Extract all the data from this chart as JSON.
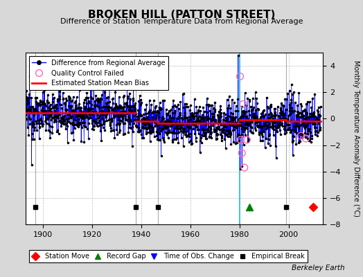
{
  "title": "BROKEN HILL (PATTON STREET)",
  "subtitle": "Difference of Station Temperature Data from Regional Average",
  "ylabel": "Monthly Temperature Anomaly Difference (°C)",
  "xlabel_years": [
    1900,
    1920,
    1940,
    1960,
    1980,
    2000
  ],
  "xlim": [
    1893,
    2014
  ],
  "ylim": [
    -8,
    5
  ],
  "yticks": [
    -8,
    -6,
    -4,
    -2,
    0,
    2,
    4
  ],
  "fig_bg_color": "#d8d8d8",
  "plot_bg_color": "#ffffff",
  "line_color": "#0000ff",
  "dot_color": "#000000",
  "bias_color": "#ff0000",
  "qc_color": "#ff69b4",
  "seed": 12345,
  "bias_segments": [
    {
      "xstart": 1893,
      "xend": 1897,
      "bias": 0.45
    },
    {
      "xstart": 1897,
      "xend": 1938,
      "bias": 0.45
    },
    {
      "xstart": 1938,
      "xend": 1947,
      "bias": -0.2
    },
    {
      "xstart": 1947,
      "xend": 1980,
      "bias": -0.35
    },
    {
      "xstart": 1980,
      "xend": 1984,
      "bias": -0.1
    },
    {
      "xstart": 1984,
      "xend": 1999,
      "bias": -0.1
    },
    {
      "xstart": 1999,
      "xend": 2013,
      "bias": -0.2
    }
  ],
  "obs_change_year": 1980,
  "obs_change_color": "#00bfff",
  "empirical_break_years": [
    1897,
    1938,
    1947,
    1999
  ],
  "empirical_break_color": "#aaaaaa",
  "station_moves": [
    2010
  ],
  "record_gaps": [
    1984
  ],
  "obs_changes": [
    1980
  ],
  "empirical_breaks": [
    1897,
    1938,
    1947,
    1999
  ],
  "qc_failed": [
    {
      "year": 1980.25,
      "value": 3.2
    },
    {
      "year": 1980.5,
      "value": -1.6
    },
    {
      "year": 1981.0,
      "value": -2.6
    },
    {
      "year": 1981.5,
      "value": 1.1
    },
    {
      "year": 1982.0,
      "value": -3.7
    },
    {
      "year": 1983.0,
      "value": -1.6
    },
    {
      "year": 2005.0,
      "value": -1.3
    },
    {
      "year": 2007.0,
      "value": -1.5
    }
  ],
  "bottom_marker_y": -6.7
}
